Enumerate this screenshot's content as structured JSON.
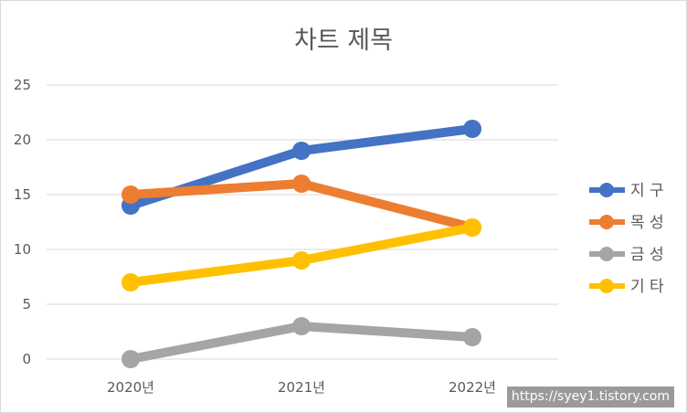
{
  "chart_data": {
    "type": "line",
    "title": "차트 제목",
    "categories": [
      "2020년",
      "2021년",
      "2022년"
    ],
    "ylim": [
      0,
      25
    ],
    "yticks": [
      0,
      5,
      10,
      15,
      20,
      25
    ],
    "grid": true,
    "legend_position": "right",
    "series": [
      {
        "name": "지 구",
        "values": [
          14,
          19,
          21
        ],
        "color": "#4472C4"
      },
      {
        "name": "목 성",
        "values": [
          15,
          16,
          12
        ],
        "color": "#ED7D31"
      },
      {
        "name": "금 성",
        "values": [
          0,
          3,
          2
        ],
        "color": "#A5A5A5"
      },
      {
        "name": "기 타",
        "values": [
          7,
          9,
          12
        ],
        "color": "#FFC000"
      }
    ]
  },
  "watermark": "https://syey1.tistory.com"
}
